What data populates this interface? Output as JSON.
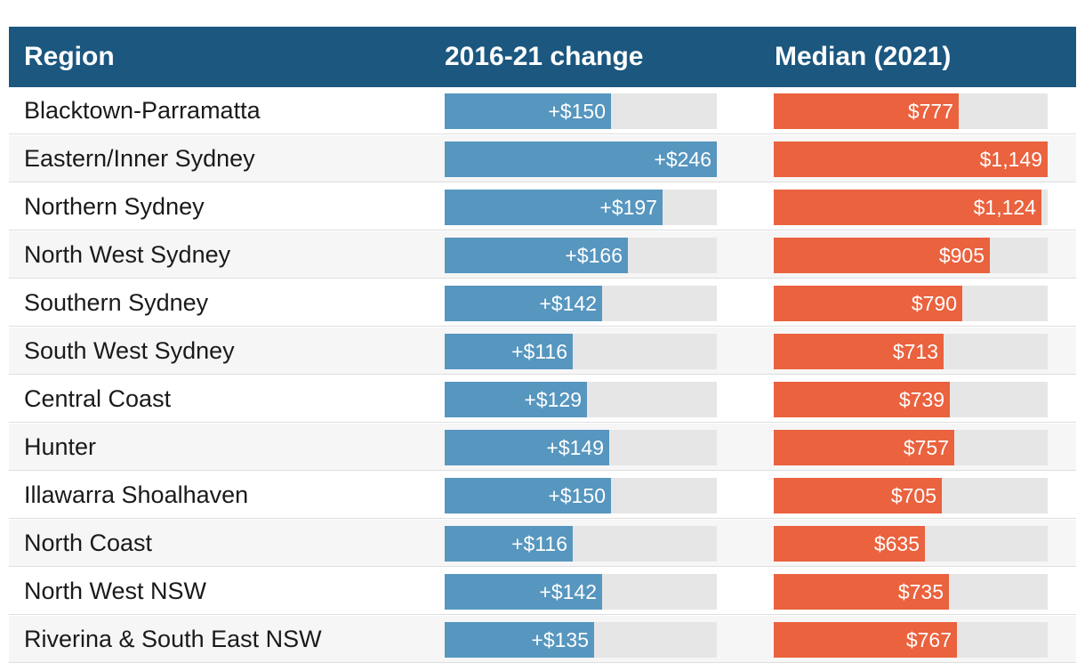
{
  "header": {
    "region": "Region",
    "change": "2016-21 change",
    "median": "Median (2021)"
  },
  "chart_data": {
    "type": "table",
    "columns": [
      "Region",
      "2016-21 change",
      "Median (2021)"
    ],
    "change_max": 246,
    "median_max": 1149,
    "rows": [
      {
        "region": "Blacktown-Parramatta",
        "change": 150,
        "change_label": "+$150",
        "median": 777,
        "median_label": "$777"
      },
      {
        "region": "Eastern/Inner Sydney",
        "change": 246,
        "change_label": "+$246",
        "median": 1149,
        "median_label": "$1,149"
      },
      {
        "region": "Northern Sydney",
        "change": 197,
        "change_label": "+$197",
        "median": 1124,
        "median_label": "$1,124"
      },
      {
        "region": "North West Sydney",
        "change": 166,
        "change_label": "+$166",
        "median": 905,
        "median_label": "$905"
      },
      {
        "region": "Southern Sydney",
        "change": 142,
        "change_label": "+$142",
        "median": 790,
        "median_label": "$790"
      },
      {
        "region": "South West Sydney",
        "change": 116,
        "change_label": "+$116",
        "median": 713,
        "median_label": "$713"
      },
      {
        "region": "Central Coast",
        "change": 129,
        "change_label": "+$129",
        "median": 739,
        "median_label": "$739"
      },
      {
        "region": "Hunter",
        "change": 149,
        "change_label": "+$149",
        "median": 757,
        "median_label": "$757"
      },
      {
        "region": "Illawarra Shoalhaven",
        "change": 150,
        "change_label": "+$150",
        "median": 705,
        "median_label": "$705"
      },
      {
        "region": "North Coast",
        "change": 116,
        "change_label": "+$116",
        "median": 635,
        "median_label": "$635"
      },
      {
        "region": "North West NSW",
        "change": 142,
        "change_label": "+$142",
        "median": 735,
        "median_label": "$735"
      },
      {
        "region": "Riverina & South East NSW",
        "change": 135,
        "change_label": "+$135",
        "median": 767,
        "median_label": "$767"
      }
    ]
  }
}
